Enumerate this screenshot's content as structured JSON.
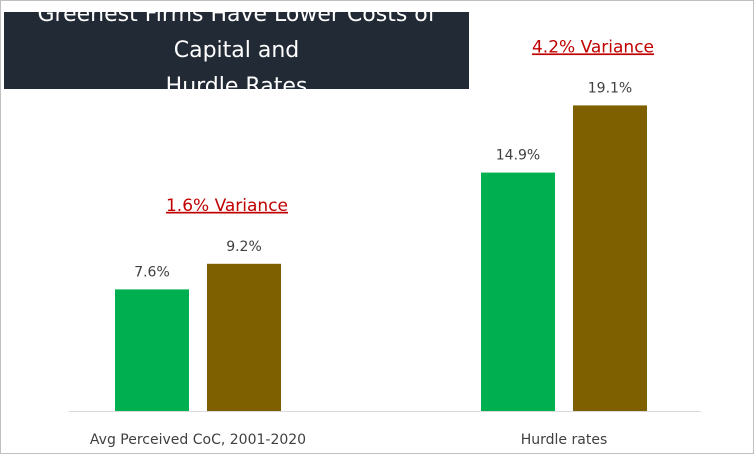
{
  "title": {
    "line1": "Greenest Firms Have Lower Costs of Capital and",
    "line2": "Hurdle Rates"
  },
  "colors": {
    "green": "#00b050",
    "brown": "#7f6000",
    "annotation": "#c00000",
    "title_bg": "#222a35"
  },
  "chart_data": {
    "type": "bar",
    "title": "Greenest Firms Have Lower Costs of Capital and Hurdle Rates",
    "categories": [
      "Avg Perceived CoC, 2001-2020",
      "Hurdle rates"
    ],
    "series": [
      {
        "values": [
          7.6,
          14.9
        ],
        "labels": [
          "7.6%",
          "14.9%"
        ],
        "color": "#00b050"
      },
      {
        "values": [
          9.2,
          19.1
        ],
        "labels": [
          "9.2%",
          "19.1%"
        ],
        "color": "#7f6000"
      }
    ],
    "annotations": [
      "1.6% Variance",
      "4.2% Variance"
    ],
    "ylim": [
      0,
      20
    ],
    "grid": false,
    "legend": "none"
  }
}
